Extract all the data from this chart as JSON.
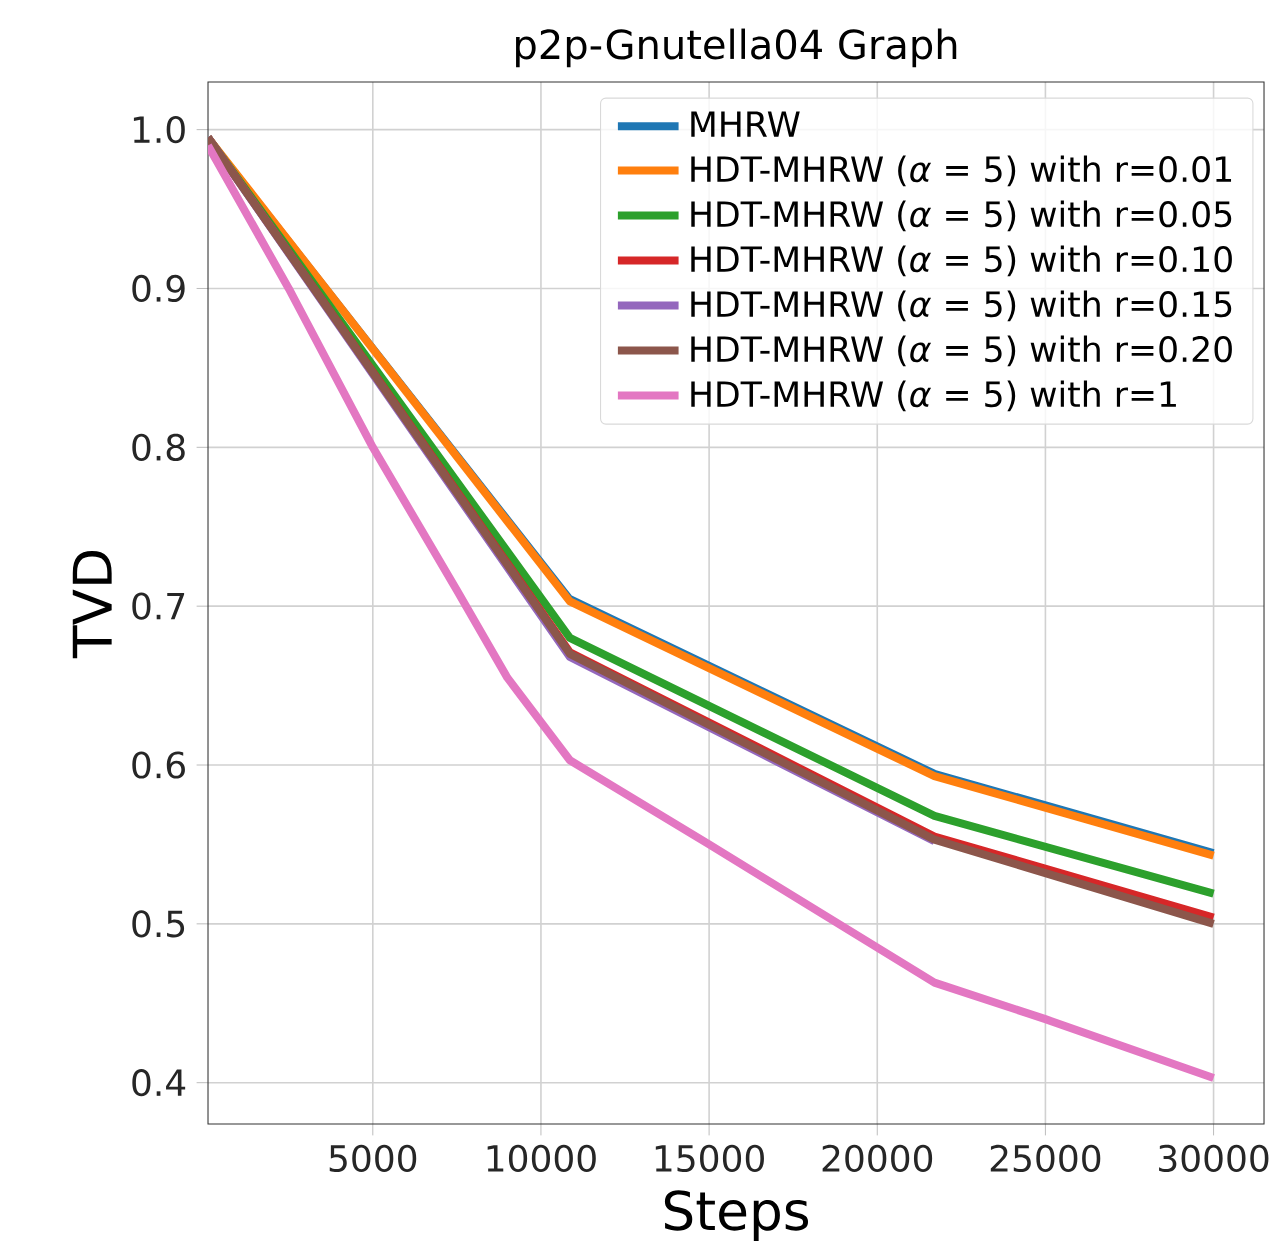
{
  "chart_data": {
    "type": "line",
    "title": "p2p-Gnutella04 Graph",
    "xlabel": "Steps",
    "ylabel": "TVD",
    "xlim": [
      100,
      31500
    ],
    "ylim": [
      0.374,
      1.03
    ],
    "xticks": [
      5000,
      10000,
      15000,
      20000,
      25000,
      30000
    ],
    "yticks": [
      0.4,
      0.5,
      0.6,
      0.7,
      0.8,
      0.9,
      {
        "value": 1.0,
        "label": "1.0"
      }
    ],
    "grid": true,
    "legend": "top right",
    "line_style": "solid",
    "marker": "none",
    "series": [
      {
        "name": "MHRW",
        "color": "#1f77b4",
        "x": [
          100,
          10860,
          21700,
          30000
        ],
        "values": [
          0.995,
          0.705,
          0.595,
          0.545
        ]
      },
      {
        "name": "HDT-MHRW (*α* = 5) with r=0.01",
        "color": "#ff7f0e",
        "x": [
          100,
          10860,
          21700,
          30000
        ],
        "values": [
          0.995,
          0.703,
          0.593,
          0.543
        ]
      },
      {
        "name": "HDT-MHRW (*α* = 5) with r=0.05",
        "color": "#2ca02c",
        "x": [
          100,
          10860,
          21700,
          30000
        ],
        "values": [
          0.995,
          0.68,
          0.568,
          0.519
        ]
      },
      {
        "name": "HDT-MHRW (*α* = 5) with r=0.10",
        "color": "#d62728",
        "x": [
          100,
          10860,
          21700,
          30000
        ],
        "values": [
          0.995,
          0.671,
          0.555,
          0.504
        ]
      },
      {
        "name": "HDT-MHRW (*α* = 5) with r=0.15",
        "color": "#9467bd",
        "x": [
          100,
          10860,
          21700
        ],
        "values": [
          0.995,
          0.668,
          0.552
        ]
      },
      {
        "name": "HDT-MHRW (*α* = 5) with r=0.20",
        "color": "#8c564b",
        "x": [
          100,
          10860,
          21700,
          30000
        ],
        "values": [
          0.995,
          0.67,
          0.553,
          0.5
        ]
      },
      {
        "name": "HDT-MHRW (*α* = 5) with r=1",
        "color": "#e377c2",
        "x": [
          100,
          2500,
          5000,
          7500,
          9000,
          10860,
          15000,
          21700,
          25000,
          30000
        ],
        "values": [
          0.99,
          0.9,
          0.8,
          0.71,
          0.655,
          0.603,
          0.55,
          0.463,
          0.44,
          0.403
        ]
      }
    ]
  }
}
